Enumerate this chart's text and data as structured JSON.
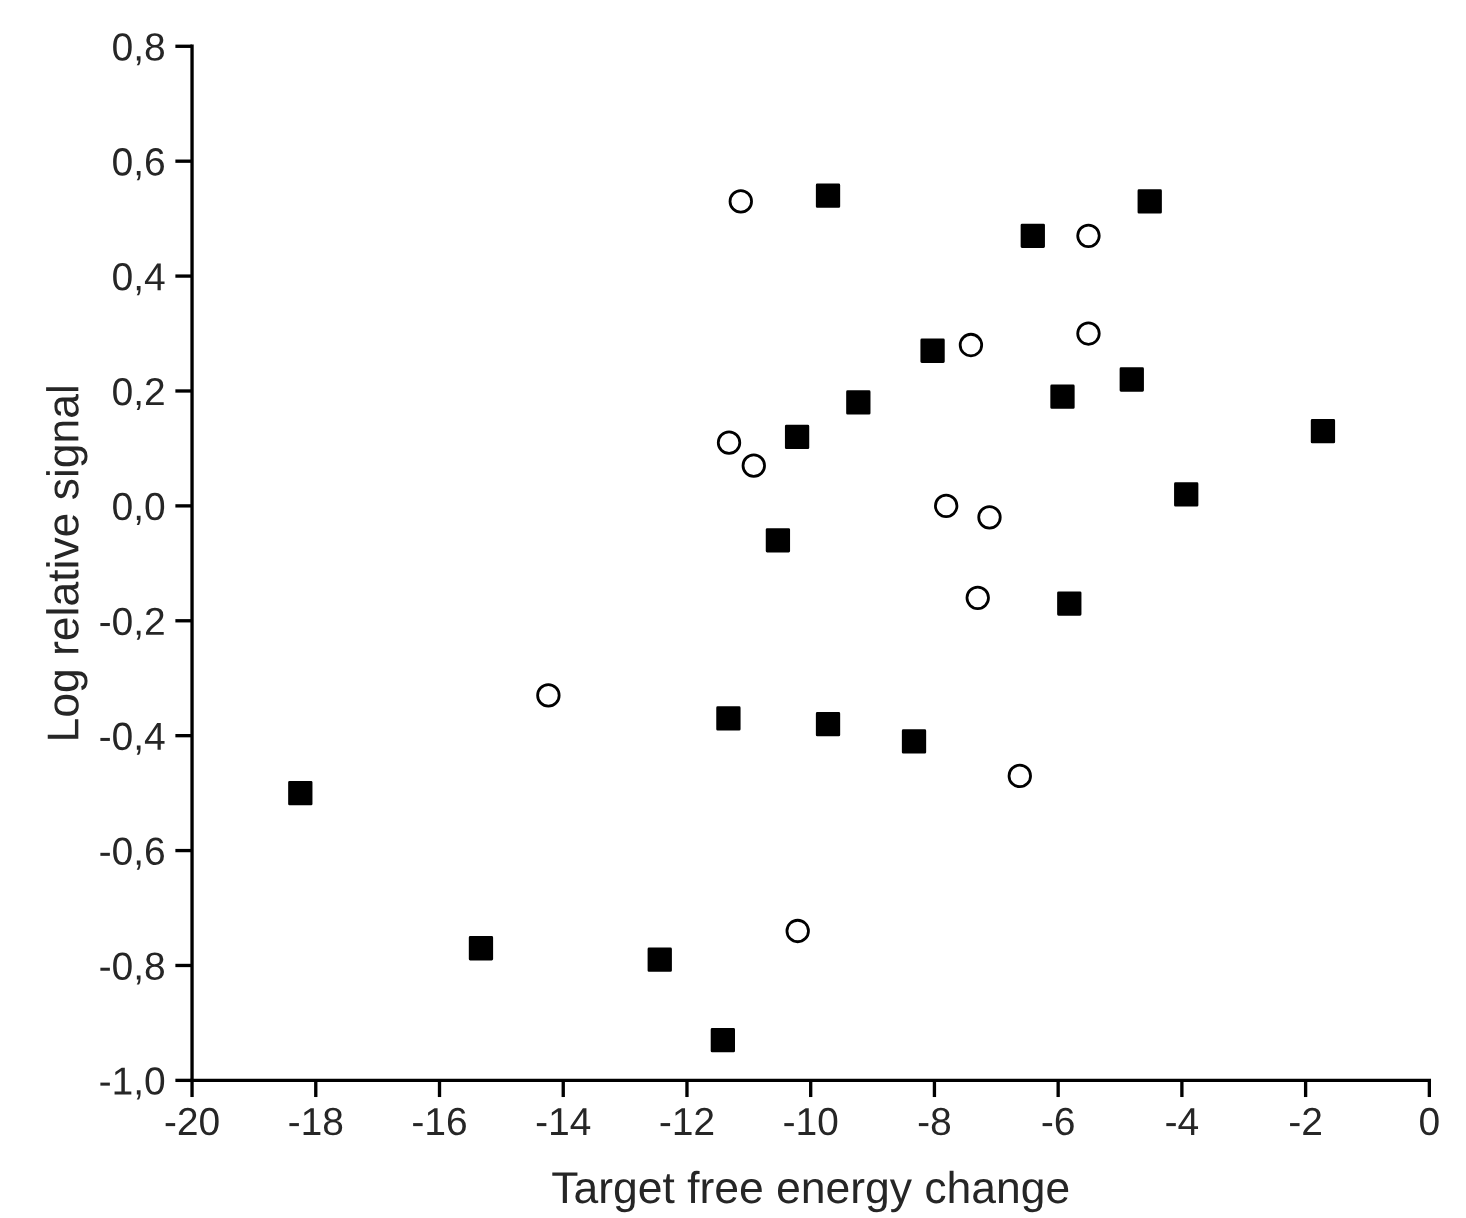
{
  "chart_data": {
    "type": "scatter",
    "xlabel": "Target free energy change",
    "ylabel": "Log relative signal",
    "xlim": [
      -20,
      0
    ],
    "ylim": [
      -1.0,
      0.8
    ],
    "xticks": [
      -20,
      -18,
      -16,
      -14,
      -12,
      -10,
      -8,
      -6,
      -4,
      -2,
      0
    ],
    "yticks": [
      {
        "value": -1.0,
        "label": "-1,0"
      },
      {
        "value": -0.8,
        "label": "-0,8"
      },
      {
        "value": -0.6,
        "label": "-0,6"
      },
      {
        "value": -0.4,
        "label": "-0,4"
      },
      {
        "value": -0.2,
        "label": "-0,2"
      },
      {
        "value": 0.0,
        "label": "0,0"
      },
      {
        "value": 0.2,
        "label": "0,2"
      },
      {
        "value": 0.4,
        "label": "0,4"
      },
      {
        "value": 0.6,
        "label": "0,6"
      },
      {
        "value": 0.8,
        "label": "0,8"
      }
    ],
    "series": [
      {
        "color": "#000000",
        "marker": "square",
        "x": [
          -9.72,
          -4.52,
          -6.41,
          -8.03,
          -9.23,
          -5.93,
          -4.81,
          -1.72,
          -10.22,
          -3.93,
          -10.53,
          -5.82,
          -11.33,
          -9.72,
          -8.33,
          -18.25,
          -15.33,
          -12.44,
          -11.42
        ],
        "values": [
          0.54,
          0.53,
          0.47,
          0.27,
          0.18,
          0.19,
          0.22,
          0.13,
          0.12,
          0.02,
          -0.06,
          -0.17,
          -0.37,
          -0.38,
          -0.41,
          -0.5,
          -0.77,
          -0.79,
          -0.93
        ]
      },
      {
        "color": "#ffffff",
        "marker": "circle",
        "x": [
          -11.13,
          -5.51,
          -7.41,
          -5.51,
          -11.32,
          -10.92,
          -7.81,
          -7.11,
          -7.3,
          -14.24,
          -6.62,
          -10.21
        ],
        "values": [
          0.53,
          0.47,
          0.28,
          0.3,
          0.11,
          0.07,
          0.0,
          -0.02,
          -0.16,
          -0.33,
          -0.47,
          -0.74
        ]
      }
    ]
  }
}
